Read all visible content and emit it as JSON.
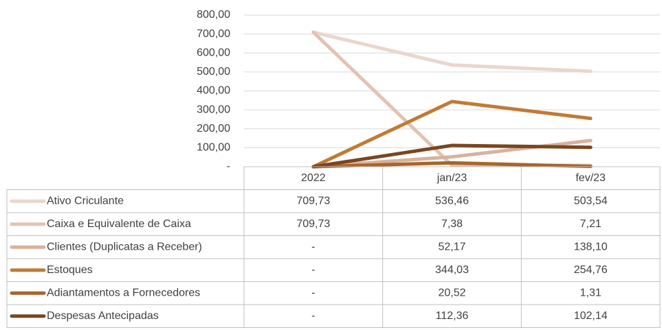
{
  "chart_data": {
    "type": "line",
    "categories": [
      "2022",
      "jan/23",
      "fev/23"
    ],
    "series": [
      {
        "name": "Ativo Criculante",
        "color": "#e9d6cd",
        "values": [
          709.73,
          536.46,
          503.54
        ],
        "value_labels": [
          "709,73",
          "536,46",
          "503,54"
        ]
      },
      {
        "name": "Caixa e Equivalente de Caixa",
        "color": "#e2c3b3",
        "values": [
          709.73,
          7.38,
          7.21
        ],
        "value_labels": [
          "709,73",
          "7,38",
          "7,21"
        ]
      },
      {
        "name": "Clientes (Duplicatas a Receber)",
        "color": "#d8b29c",
        "values": [
          0,
          52.17,
          138.1
        ],
        "value_labels": [
          "-",
          "52,17",
          "138,10"
        ]
      },
      {
        "name": "Estoques",
        "color": "#c27a34",
        "values": [
          0,
          344.03,
          254.76
        ],
        "value_labels": [
          "-",
          "344,03",
          "254,76"
        ]
      },
      {
        "name": "Adiantamentos a Fornecedores",
        "color": "#a9652a",
        "values": [
          0,
          20.52,
          1.31
        ],
        "value_labels": [
          "-",
          "20,52",
          "1,31"
        ]
      },
      {
        "name": "Despesas Antecipadas",
        "color": "#7a4620",
        "values": [
          0,
          112.36,
          102.14
        ],
        "value_labels": [
          "-",
          "112,36",
          "102,14"
        ]
      }
    ],
    "ylim": [
      0,
      800
    ],
    "yticks": [
      {
        "value": 0,
        "label": "-"
      },
      {
        "value": 100,
        "label": "100,00"
      },
      {
        "value": 200,
        "label": "200,00"
      },
      {
        "value": 300,
        "label": "300,00"
      },
      {
        "value": 400,
        "label": "400,00"
      },
      {
        "value": 500,
        "label": "500,00"
      },
      {
        "value": 600,
        "label": "600,00"
      },
      {
        "value": 700,
        "label": "700,00"
      },
      {
        "value": 800,
        "label": "800,00"
      }
    ],
    "grid": true
  }
}
